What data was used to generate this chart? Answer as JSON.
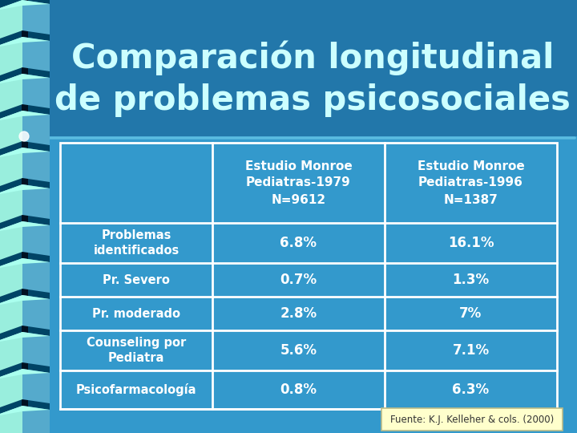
{
  "title_line1": "Comparación longitudinal",
  "title_line2": "de problemas psicosociales",
  "title_color": "#CCFFFF",
  "title_fontsize": 30,
  "bg_color": "#3399CC",
  "title_bg_color": "#2277AA",
  "sep_line_color": "#5BBCE0",
  "col_headers": [
    "Estudio Monroe\nPediatras-1979\nN=9612",
    "Estudio Monroe\nPediatras-1996\nN=1387"
  ],
  "rows": [
    [
      "Problemas\nidentificados",
      "6.8%",
      "16.1%"
    ],
    [
      "Pr. Severo",
      "0.7%",
      "1.3%"
    ],
    [
      "Pr. moderado",
      "2.8%",
      "7%"
    ],
    [
      "Counseling por\nPediatra",
      "5.6%",
      "7.1%"
    ],
    [
      "Psicofarmacología",
      "0.8%",
      "6.3%"
    ]
  ],
  "footer": "Fuente: K.J. Kelleher & cols. (2000)",
  "footer_bg": "#FFFFCC",
  "footer_border": "#BBBB88",
  "footer_color": "#333333",
  "cell_text_color": "white",
  "header_text_color": "white",
  "row_label_color": "white",
  "table_border_color": "white",
  "table_cell_bg": "#3399CC",
  "stripe_light": "#99EEDD",
  "stripe_mid": "#55AACC",
  "stripe_dark": "#003355",
  "stripe_highlight": "#AAFFEE",
  "left_bar_dark": "#004466"
}
